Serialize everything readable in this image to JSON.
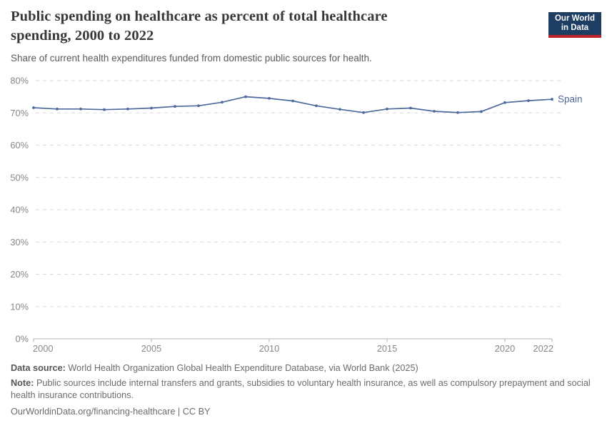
{
  "header": {
    "title": "Public spending on healthcare as percent of total healthcare spending, 2000 to 2022",
    "subtitle": "Share of current health expenditures funded from domestic public sources for health.",
    "logo": {
      "line1": "Our World",
      "line2": "in Data"
    }
  },
  "chart_data": {
    "type": "line",
    "title": "Public spending on healthcare as percent of total healthcare spending, 2000 to 2022",
    "xlabel": "",
    "ylabel": "",
    "xlim": [
      2000,
      2022
    ],
    "ylim": [
      0,
      80
    ],
    "grid": "horizontal-dashed",
    "legend_position": "end-of-line-label",
    "ytick_suffix": "%",
    "yticks": [
      0,
      10,
      20,
      30,
      40,
      50,
      60,
      70,
      80
    ],
    "xticks": [
      2000,
      2005,
      2010,
      2015,
      2020,
      2022
    ],
    "x": [
      2000,
      2001,
      2002,
      2003,
      2004,
      2005,
      2006,
      2007,
      2008,
      2009,
      2010,
      2011,
      2012,
      2013,
      2014,
      2015,
      2016,
      2017,
      2018,
      2019,
      2020,
      2021,
      2022
    ],
    "series": [
      {
        "name": "Spain",
        "color": "#4C6A9C",
        "values": [
          71.6,
          71.2,
          71.2,
          71.0,
          71.2,
          71.5,
          72.0,
          72.2,
          73.3,
          75.0,
          74.5,
          73.7,
          72.2,
          71.1,
          70.1,
          71.2,
          71.5,
          70.5,
          70.1,
          70.4,
          73.2,
          73.8,
          74.2
        ]
      }
    ]
  },
  "footer": {
    "data_source_label": "Data source:",
    "data_source_text": "World Health Organization Global Health Expenditure Database, via World Bank (2025)",
    "note_label": "Note:",
    "note_text": "Public sources include internal transfers and grants, subsidies to voluntary health insurance, as well as compulsory prepayment and social health insurance contributions.",
    "citation_url": "OurWorldinData.org/financing-healthcare",
    "citation_separator": " | ",
    "citation_license": "CC BY"
  },
  "colors": {
    "line": "#4C6A9C",
    "gridline": "#dadada",
    "axis": "#b3b3b3",
    "tick_text": "#878787",
    "logo_background": "#1d3d63",
    "logo_bar": "#c0222c"
  }
}
